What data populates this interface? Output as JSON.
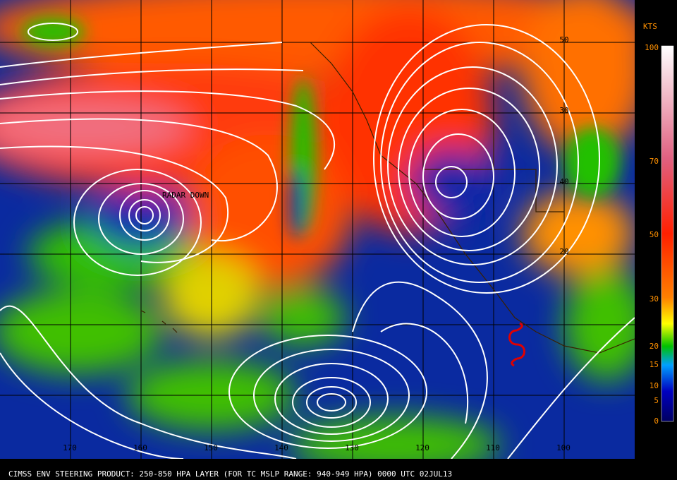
{
  "map": {
    "unit": "KTS",
    "scale_labels": [
      "100",
      "70",
      "50",
      "30",
      "20",
      "15",
      "10",
      "5",
      "0"
    ],
    "longitude_labels": [
      "170",
      "160",
      "150",
      "140",
      "130",
      "120",
      "110",
      "100"
    ],
    "latitude_labels": [
      "50",
      "30",
      "40",
      "20"
    ],
    "annotation": "RADAR DOWN",
    "footer": "CIMSS ENV STEERING PRODUCT: 250-850 HPA LAYER (FOR TC MSLP RANGE: 940-949 HPA)  0000 UTC  02JUL13"
  }
}
